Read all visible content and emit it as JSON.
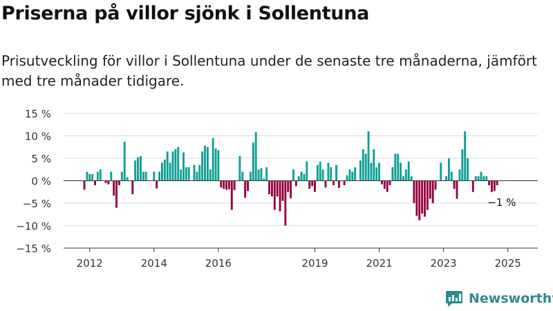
{
  "header": {
    "title": "Priserna på villor sjönk i Sollentuna",
    "subtitle": "Prisutveckling för villor i Sollentuna under de senaste tre månaderna, jämfört med tre månader tidigare."
  },
  "brand": {
    "name": "Newsworthy",
    "color": "#2f8a8a"
  },
  "chart_data": {
    "type": "bar",
    "title": "",
    "xlabel": "",
    "ylabel": "",
    "ylim": [
      -15,
      15
    ],
    "y_ticks": [
      15,
      10,
      5,
      0,
      -5,
      -10,
      -15
    ],
    "y_tick_labels": [
      "15 %",
      "10 %",
      "5 %",
      "0 %",
      "−5 %",
      "−10 %",
      "−15 %"
    ],
    "x_ticks": [
      "2012",
      "2014",
      "2016",
      "2019",
      "2021",
      "2023",
      "2025"
    ],
    "start": "2011-11",
    "frequency": "monthly",
    "grid": true,
    "legend": "none",
    "colors": {
      "positive": "#0f9e95",
      "negative": "#94003f",
      "grid": "#dddddd",
      "zero_line": "#333333"
    },
    "annotation": {
      "text": "−1 %",
      "value": -1
    },
    "values": [
      -2,
      2,
      1.5,
      1.5,
      -1,
      2,
      2.5,
      0,
      -0.5,
      -0.8,
      2,
      -3.3,
      -6,
      -1,
      2,
      8.7,
      0.8,
      0,
      -3,
      4.5,
      5.2,
      5.5,
      2,
      2,
      0,
      0,
      2,
      -1.7,
      2,
      4,
      4.7,
      6.5,
      4,
      6.5,
      7,
      7.5,
      2.5,
      6.3,
      3,
      3,
      0,
      3.5,
      2,
      3.5,
      6.5,
      7.8,
      7.5,
      2.5,
      9.5,
      7.2,
      6.8,
      -1.5,
      -1.8,
      -2,
      -1.9,
      -6.5,
      -2.1,
      0,
      5.5,
      2,
      -3.8,
      -2.3,
      2,
      8.5,
      10.8,
      2.5,
      2.8,
      0.5,
      3,
      -3,
      -3.5,
      -6.5,
      -3.5,
      -6.8,
      -4.5,
      -10,
      -2.5,
      -3.9,
      2.5,
      -1.2,
      1,
      2,
      1.5,
      4.3,
      -1.8,
      -1.2,
      -2.5,
      3.5,
      4.2,
      2.5,
      -1.5,
      4,
      3,
      -1,
      3.5,
      -1.6,
      0,
      -1,
      1.2,
      2.5,
      2,
      3,
      0,
      4.5,
      7,
      6,
      11,
      4,
      7,
      3,
      4,
      -0.8,
      -1.8,
      -2.5,
      -1,
      3,
      6,
      6,
      4,
      1,
      2.5,
      4.3,
      1,
      -5,
      -7.8,
      -8.8,
      -7.3,
      -8,
      -6.5,
      -4,
      -5,
      -2,
      0,
      4,
      0,
      1,
      5,
      2,
      -1.8,
      -4,
      2.5,
      7,
      11,
      5,
      0,
      -2.5,
      1,
      1,
      2,
      1,
      1,
      -1,
      -2.5,
      -2.3,
      -1
    ]
  }
}
